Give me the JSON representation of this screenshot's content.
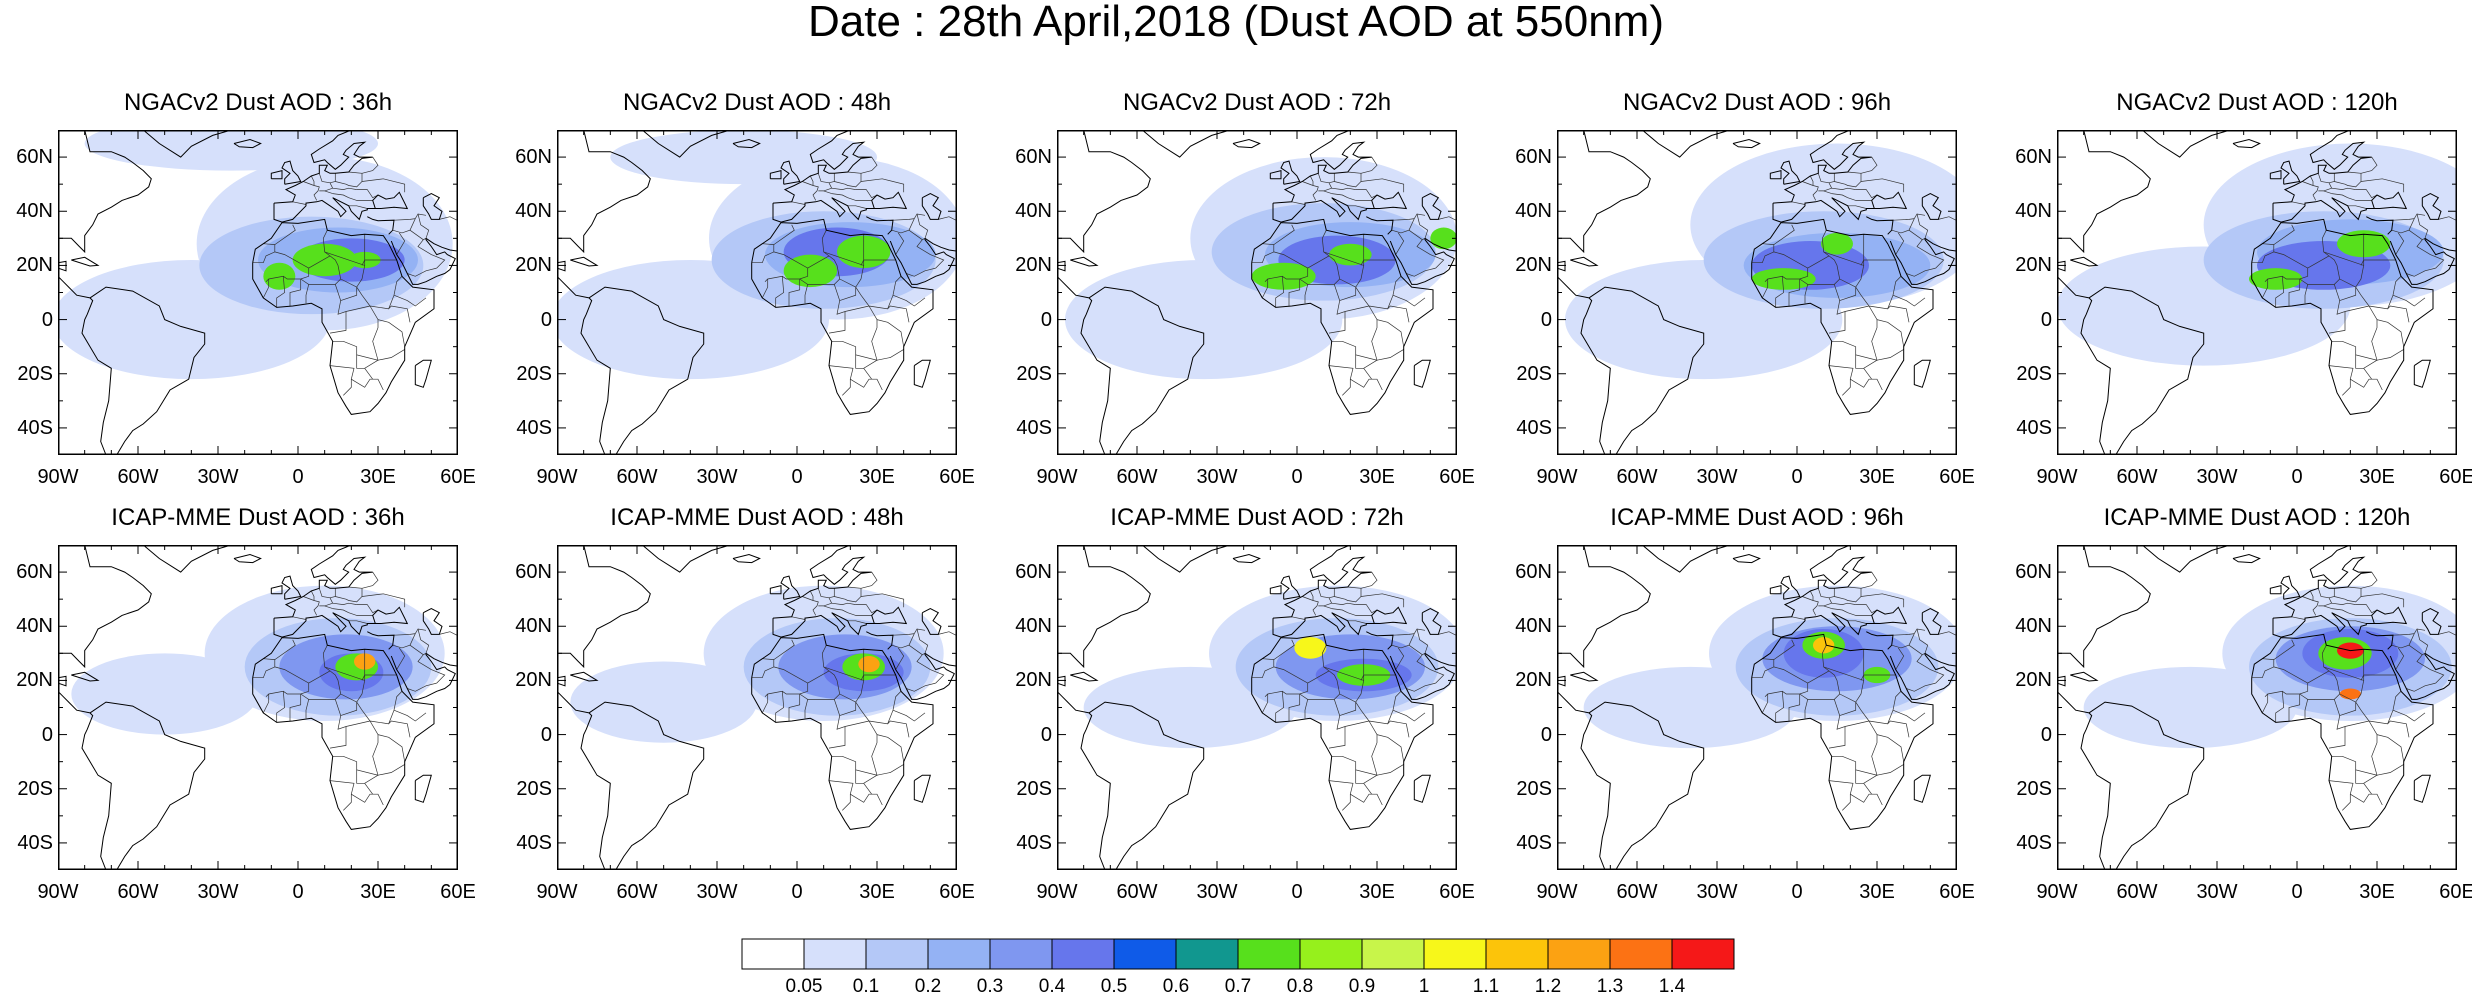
{
  "figure_title": "Date : 28th April,2018 (Dust AOD at 550nm)",
  "lat_labels": [
    "60N",
    "40N",
    "20N",
    "0",
    "20S",
    "40S"
  ],
  "lat_values": [
    60,
    40,
    20,
    0,
    -20,
    -40
  ],
  "lon_labels": [
    "90W",
    "60W",
    "30W",
    "0",
    "30E",
    "60E"
  ],
  "lon_values": [
    -90,
    -60,
    -30,
    0,
    30,
    60
  ],
  "lon_range": [
    -90,
    60
  ],
  "lat_range": [
    -50,
    70
  ],
  "panels": [
    {
      "title": "NGACv2 Dust AOD : 36h",
      "row": 0,
      "col": 0
    },
    {
      "title": "NGACv2 Dust AOD : 48h",
      "row": 0,
      "col": 1
    },
    {
      "title": "NGACv2 Dust AOD : 72h",
      "row": 0,
      "col": 2
    },
    {
      "title": "NGACv2 Dust AOD : 96h",
      "row": 0,
      "col": 3
    },
    {
      "title": "NGACv2 Dust AOD : 120h",
      "row": 0,
      "col": 4
    },
    {
      "title": "ICAP-MME Dust AOD : 36h",
      "row": 1,
      "col": 0
    },
    {
      "title": "ICAP-MME Dust AOD : 48h",
      "row": 1,
      "col": 1
    },
    {
      "title": "ICAP-MME Dust AOD : 72h",
      "row": 1,
      "col": 2
    },
    {
      "title": "ICAP-MME Dust AOD : 96h",
      "row": 1,
      "col": 3
    },
    {
      "title": "ICAP-MME Dust AOD : 120h",
      "row": 1,
      "col": 4
    }
  ],
  "colorbar": {
    "labels": [
      "0.05",
      "0.1",
      "0.2",
      "0.3",
      "0.4",
      "0.5",
      "0.6",
      "0.7",
      "0.8",
      "0.9",
      "1",
      "1.1",
      "1.2",
      "1.3",
      "1.4"
    ],
    "colors": [
      "#ffffff",
      "#d6e0fb",
      "#b4c8f7",
      "#94b2f4",
      "#7f97f0",
      "#6676ec",
      "#0f5be8",
      "#11978f",
      "#57e01c",
      "#96f01c",
      "#c8f54a",
      "#f7f71a",
      "#fcc40a",
      "#fca212",
      "#fc7214",
      "#f51818"
    ]
  }
}
